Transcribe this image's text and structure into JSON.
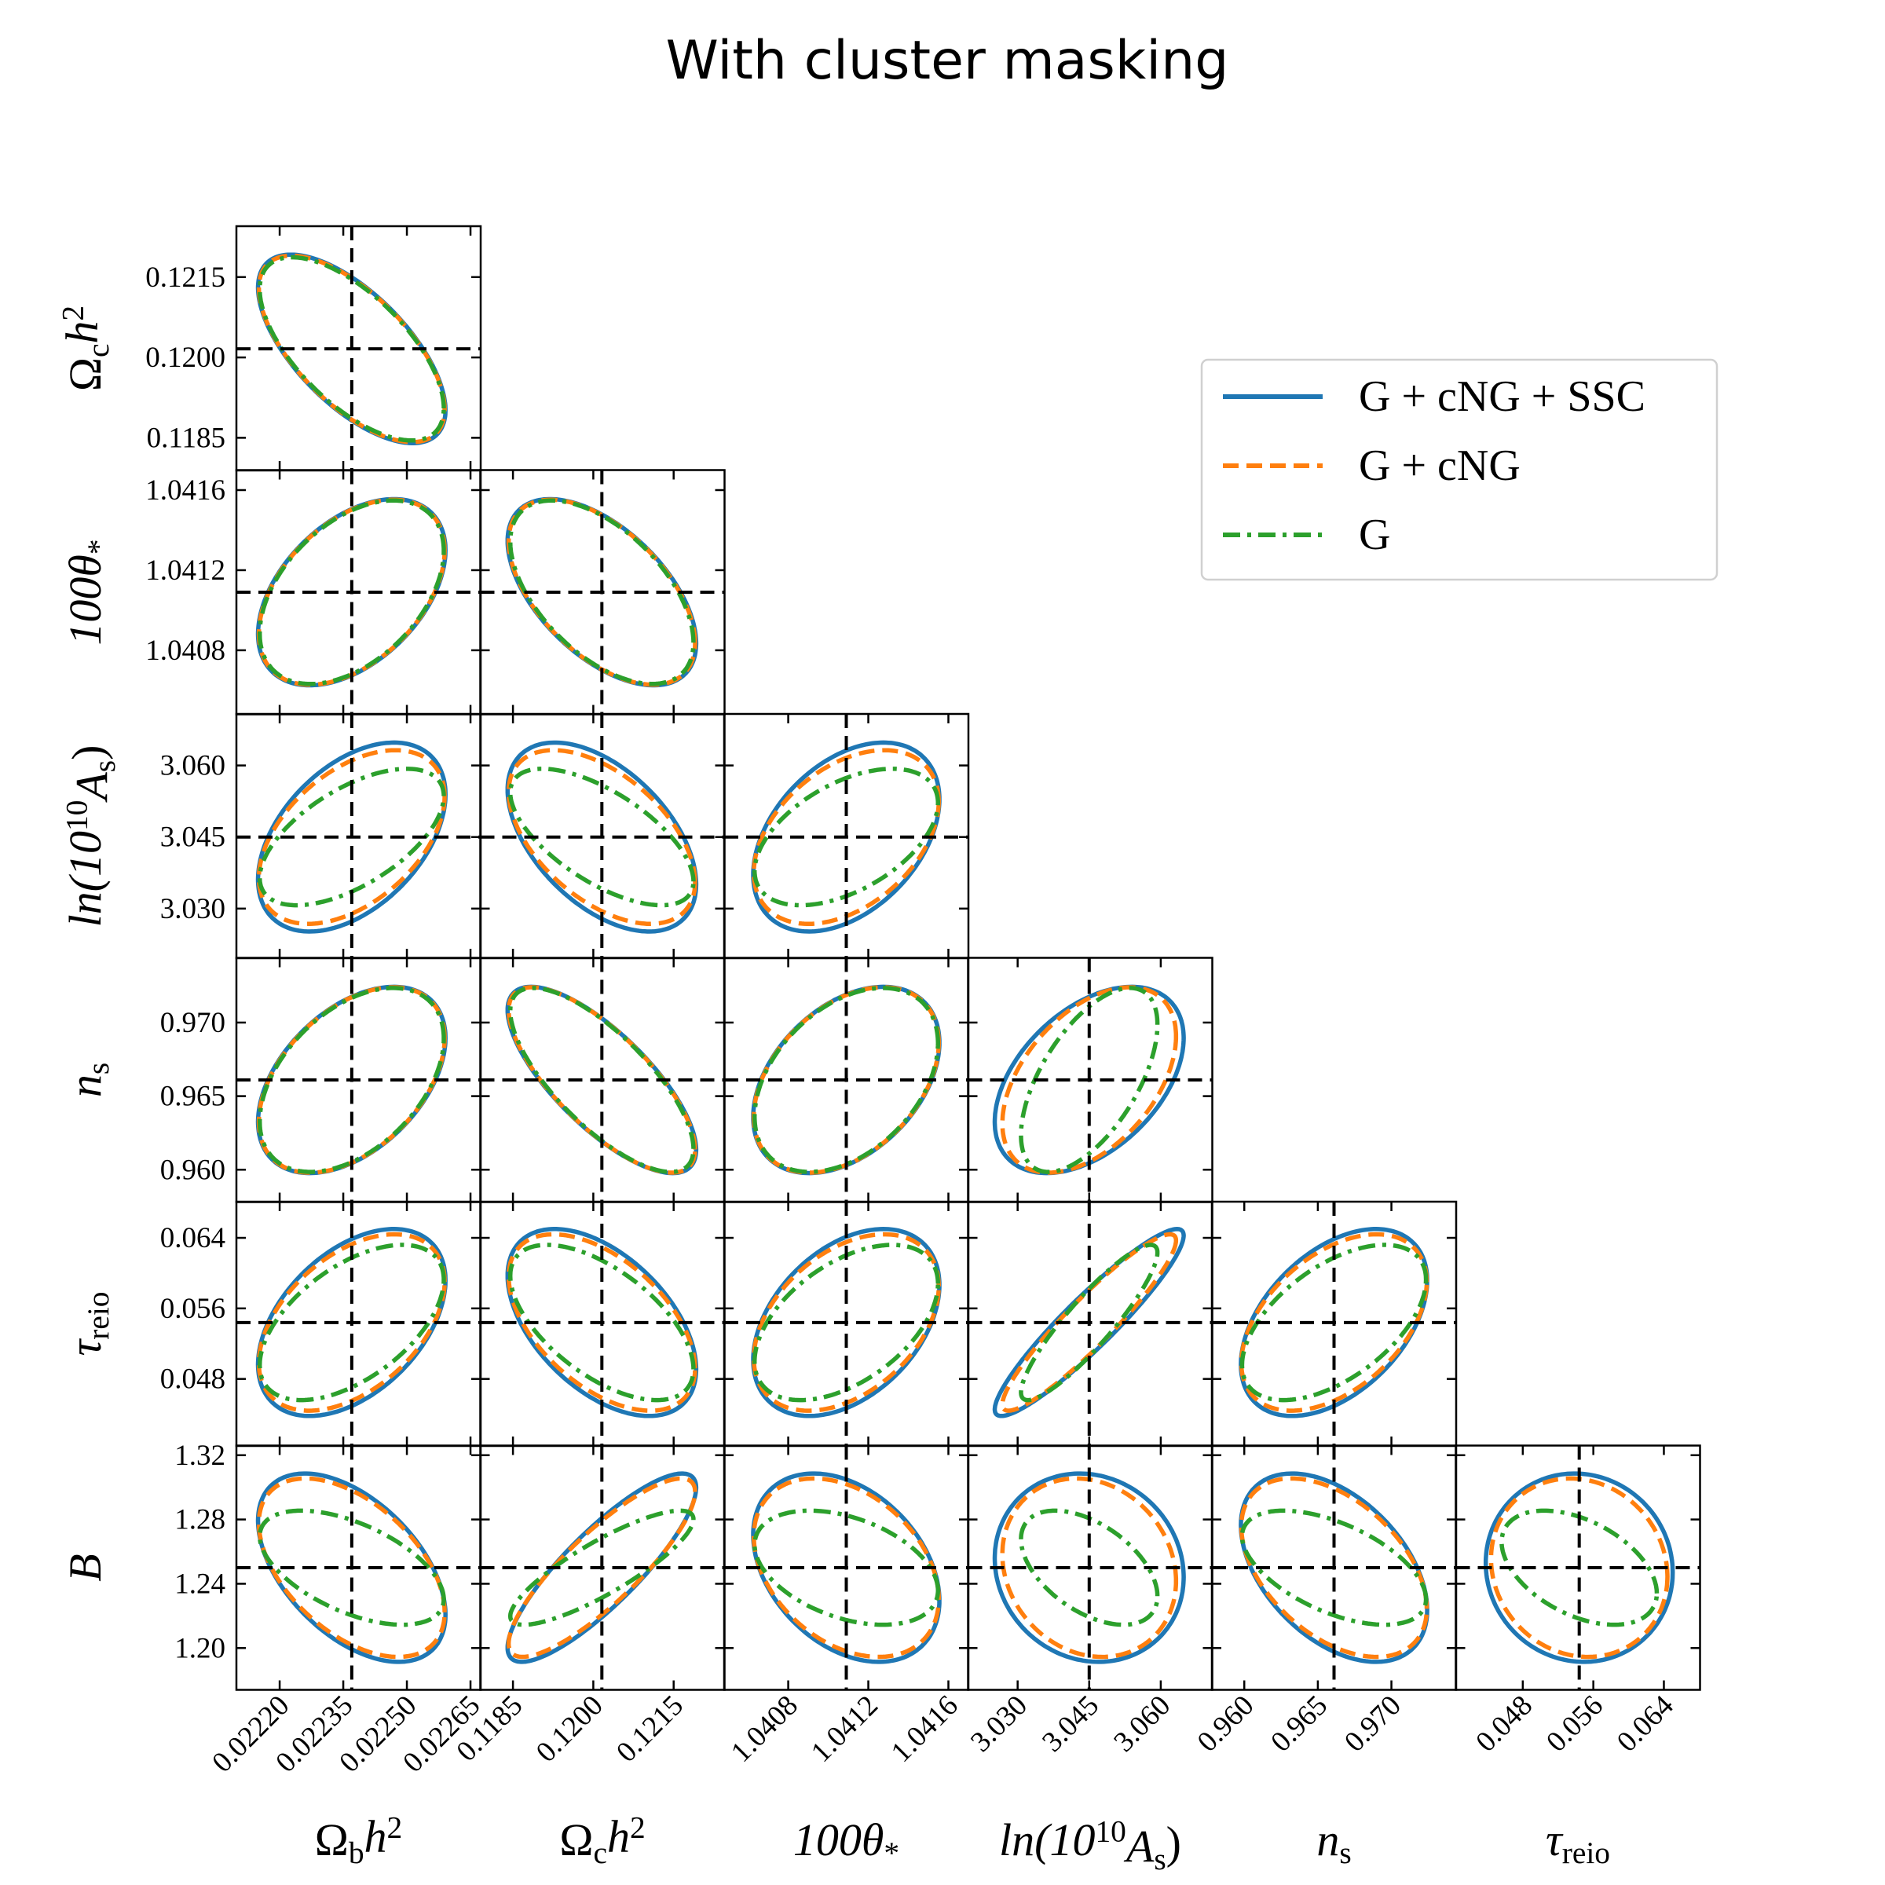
{
  "chart_data": {
    "type": "corner-contour",
    "title": "With cluster masking",
    "parameters": [
      {
        "key": "omega_b",
        "label": "Ω_{b}h^{2}",
        "fiducial": 0.02237,
        "range": [
          0.022098,
          0.022674
        ],
        "ticks": [
          "0.02220",
          "0.02235",
          "0.02250",
          "0.02265"
        ]
      },
      {
        "key": "omega_c",
        "label": "Ω_{c}h^{2}",
        "fiducial": 0.12016,
        "range": [
          0.11789,
          0.12245
        ],
        "ticks": [
          "0.1185",
          "0.1200",
          "0.1215"
        ]
      },
      {
        "key": "theta",
        "label": "100θ_{*}",
        "fiducial": 1.04109,
        "range": [
          1.04048,
          1.0417
        ],
        "ticks": [
          "1.0408",
          "1.0412",
          "1.0416"
        ]
      },
      {
        "key": "lnAs",
        "label": "ln(10^{10}A_{s})",
        "fiducial": 3.045,
        "range": [
          3.0196,
          3.0708
        ],
        "ticks": [
          "3.030",
          "3.045",
          "3.060"
        ]
      },
      {
        "key": "ns",
        "label": "n_{s}",
        "fiducial": 0.9661,
        "range": [
          0.9578,
          0.9744
        ],
        "ticks": [
          "0.960",
          "0.965",
          "0.970"
        ]
      },
      {
        "key": "tau",
        "label": "τ_{reio}",
        "fiducial": 0.0544,
        "range": [
          0.0404,
          0.0681
        ],
        "ticks": [
          "0.048",
          "0.056",
          "0.064"
        ]
      },
      {
        "key": "B",
        "label": "B",
        "fiducial": 1.25,
        "range": [
          1.174,
          1.326
        ],
        "ticks": [
          "1.20",
          "1.24",
          "1.28",
          "1.32"
        ]
      }
    ],
    "series": [
      {
        "name": "G + cNG + SSC",
        "color": "#1f77b4",
        "style": "solid",
        "contour_halfwidth": [
          0.000221,
          0.00176,
          0.000465,
          0.0198,
          0.00633,
          0.0106,
          0.0586
        ],
        "corr": {
          "0-1": -0.65,
          "0-2": 0.45,
          "0-3": 0.45,
          "0-4": 0.45,
          "0-5": 0.45,
          "0-6": -0.5,
          "1-2": -0.55,
          "1-3": -0.5,
          "1-4": -0.75,
          "1-5": -0.5,
          "1-6": 0.85,
          "2-3": 0.4,
          "2-4": 0.4,
          "2-5": 0.4,
          "2-6": -0.35,
          "3-4": 0.45,
          "3-5": 0.93,
          "3-6": -0.1,
          "4-5": 0.45,
          "4-6": -0.45,
          "5-6": -0.05
        }
      },
      {
        "name": "G + cNG",
        "color": "#ff7f0e",
        "style": "dashed",
        "contour_halfwidth": [
          0.000219,
          0.00174,
          0.000462,
          0.0182,
          0.0063,
          0.01,
          0.0555
        ],
        "corr": {
          "0-1": -0.65,
          "0-2": 0.45,
          "0-3": 0.47,
          "0-4": 0.45,
          "0-5": 0.46,
          "0-6": -0.5,
          "1-2": -0.55,
          "1-3": -0.52,
          "1-4": -0.75,
          "1-5": -0.52,
          "1-6": 0.85,
          "2-3": 0.41,
          "2-4": 0.4,
          "2-5": 0.41,
          "2-6": -0.35,
          "3-4": 0.47,
          "3-5": 0.93,
          "3-6": -0.15,
          "4-5": 0.46,
          "4-6": -0.46,
          "5-6": -0.1
        }
      },
      {
        "name": "G",
        "color": "#2ca02c",
        "style": "dashdot",
        "contour_halfwidth": [
          0.000217,
          0.00171,
          0.000458,
          0.0143,
          0.00625,
          0.0088,
          0.0355
        ],
        "corr": {
          "0-1": -0.65,
          "0-2": 0.45,
          "0-3": 0.6,
          "0-4": 0.45,
          "0-5": 0.55,
          "0-6": -0.55,
          "1-2": -0.55,
          "1-3": -0.65,
          "1-4": -0.75,
          "1-5": -0.6,
          "1-6": 0.85,
          "2-3": 0.5,
          "2-4": 0.4,
          "2-5": 0.5,
          "2-6": -0.4,
          "3-4": 0.6,
          "3-5": 0.9,
          "3-6": -0.5,
          "4-5": 0.55,
          "4-6": -0.55,
          "5-6": -0.45
        }
      }
    ],
    "fiducial_lines": {
      "color": "#000000",
      "style": "dashed"
    },
    "legend": {
      "placement": "upper-right"
    }
  }
}
